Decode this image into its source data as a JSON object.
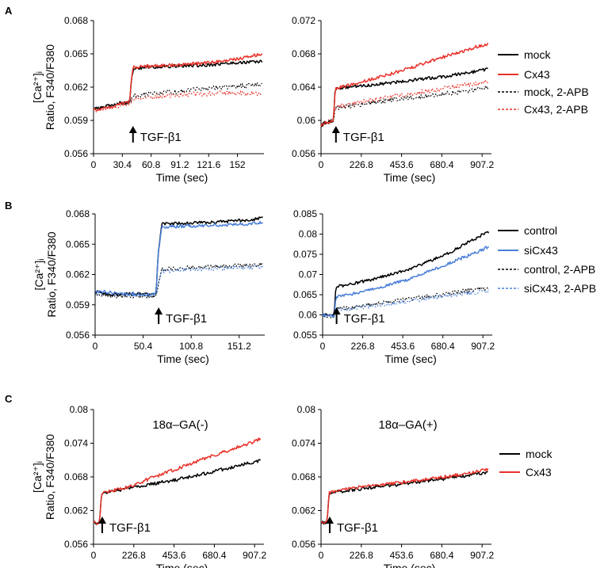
{
  "figure": {
    "panel_letters": [
      "A",
      "B",
      "C"
    ],
    "ylabel_line1": "[Ca²⁺]ᵢ",
    "ylabel_line2": "Ratio, F340/F380",
    "xlabel": "Time (sec)"
  },
  "colors": {
    "black": "#000000",
    "red": "#e8322a",
    "blue": "#4a7fd8",
    "pale_red": "#f0a09a",
    "pale_blue": "#9fbfe9",
    "gray": "#7a7a7a"
  },
  "legends": {
    "A": [
      "mock",
      "Cx43",
      "mock, 2-APB",
      "Cx43, 2-APB"
    ],
    "B": [
      "control",
      "siCx43",
      "control, 2-APB",
      "siCx43, 2-APB"
    ],
    "C": [
      "mock",
      "Cx43"
    ]
  },
  "chart_data": [
    {
      "id": "A-left",
      "type": "line",
      "xlabel": "Time (sec)",
      "ylabel": "[Ca2+]i Ratio, F340/F380",
      "xlim": [
        0,
        180
      ],
      "ylim": [
        0.056,
        0.068
      ],
      "xticks": [
        "0",
        "30.4",
        "60.8",
        "91.2",
        "121.6",
        "152"
      ],
      "yticks": [
        "0.056",
        "0.059",
        "0.062",
        "0.065",
        "0.068"
      ],
      "annotation": "TGF-β1",
      "stimulus_time": 40,
      "series": [
        {
          "name": "mock",
          "style": "solid",
          "color": "#000000",
          "x": [
            0,
            10,
            20,
            30,
            38,
            40,
            42,
            60,
            90,
            120,
            150,
            178
          ],
          "y": [
            0.06,
            0.0602,
            0.0604,
            0.0606,
            0.0606,
            0.0625,
            0.0637,
            0.0638,
            0.0639,
            0.064,
            0.0642,
            0.0643
          ]
        },
        {
          "name": "Cx43",
          "style": "solid",
          "color": "#e8322a",
          "x": [
            0,
            10,
            20,
            30,
            38,
            40,
            42,
            60,
            90,
            120,
            150,
            178
          ],
          "y": [
            0.0599,
            0.0601,
            0.0603,
            0.0605,
            0.0606,
            0.0626,
            0.0638,
            0.0639,
            0.064,
            0.0642,
            0.0645,
            0.065
          ]
        },
        {
          "name": "mock, 2-APB",
          "style": "dotted",
          "color": "#000000",
          "x": [
            0,
            10,
            20,
            30,
            38,
            42,
            60,
            90,
            120,
            150,
            178
          ],
          "y": [
            0.06,
            0.0602,
            0.0603,
            0.0605,
            0.0606,
            0.0612,
            0.0614,
            0.0616,
            0.0619,
            0.0621,
            0.0622
          ]
        },
        {
          "name": "Cx43, 2-APB",
          "style": "dotted",
          "color": "#e8322a",
          "x": [
            0,
            10,
            20,
            30,
            38,
            42,
            60,
            90,
            120,
            150,
            178
          ],
          "y": [
            0.0599,
            0.0601,
            0.0602,
            0.0604,
            0.0605,
            0.061,
            0.0611,
            0.0613,
            0.0614,
            0.0615,
            0.0614
          ]
        }
      ]
    },
    {
      "id": "A-right",
      "type": "line",
      "xlabel": "Time (sec)",
      "ylabel": "",
      "xlim": [
        0,
        960
      ],
      "ylim": [
        0.056,
        0.072
      ],
      "xticks": [
        "0",
        "226.8",
        "453.6",
        "680.4",
        "907.2"
      ],
      "yticks": [
        "0.056",
        "0.06",
        "0.064",
        "0.068",
        "0.072"
      ],
      "annotation": "TGF-β1",
      "stimulus_time": 75,
      "series": [
        {
          "name": "mock",
          "style": "solid",
          "color": "#000000",
          "x": [
            0,
            40,
            70,
            75,
            80,
            150,
            300,
            500,
            700,
            900,
            940
          ],
          "y": [
            0.0595,
            0.0598,
            0.06,
            0.062,
            0.0638,
            0.064,
            0.0643,
            0.0648,
            0.0653,
            0.066,
            0.0662
          ]
        },
        {
          "name": "Cx43",
          "style": "solid",
          "color": "#e8322a",
          "x": [
            0,
            40,
            70,
            75,
            80,
            150,
            300,
            500,
            700,
            900,
            940
          ],
          "y": [
            0.0595,
            0.0598,
            0.06,
            0.062,
            0.0638,
            0.0642,
            0.065,
            0.0663,
            0.0677,
            0.069,
            0.0692
          ]
        },
        {
          "name": "mock, 2-APB",
          "style": "dotted",
          "color": "#000000",
          "x": [
            0,
            40,
            70,
            80,
            150,
            300,
            500,
            700,
            900,
            940
          ],
          "y": [
            0.0595,
            0.0598,
            0.06,
            0.0615,
            0.0617,
            0.0622,
            0.0627,
            0.0632,
            0.0638,
            0.064
          ]
        },
        {
          "name": "Cx43, 2-APB",
          "style": "dotted",
          "color": "#e8322a",
          "x": [
            0,
            40,
            70,
            80,
            150,
            300,
            500,
            700,
            900,
            940
          ],
          "y": [
            0.0595,
            0.0598,
            0.06,
            0.0616,
            0.0619,
            0.0625,
            0.0632,
            0.0639,
            0.0645,
            0.0647
          ]
        }
      ]
    },
    {
      "id": "B-left",
      "type": "line",
      "xlabel": "Time (sec)",
      "ylabel": "[Ca2+]i Ratio, F340/F380",
      "xlim": [
        0,
        178
      ],
      "ylim": [
        0.056,
        0.068
      ],
      "xticks": [
        "0",
        "50.4",
        "100.8",
        "151.2"
      ],
      "yticks": [
        "0.056",
        "0.059",
        "0.062",
        "0.065",
        "0.068"
      ],
      "annotation": "TGF-β1",
      "stimulus_time": 65,
      "series": [
        {
          "name": "control",
          "style": "solid",
          "color": "#000000",
          "x": [
            0,
            20,
            40,
            60,
            64,
            66,
            70,
            100,
            130,
            160,
            176
          ],
          "y": [
            0.0603,
            0.06,
            0.0601,
            0.06,
            0.0601,
            0.064,
            0.067,
            0.0671,
            0.0672,
            0.0674,
            0.0676
          ]
        },
        {
          "name": "siCx43",
          "style": "solid",
          "color": "#4a7fd8",
          "x": [
            0,
            20,
            40,
            60,
            64,
            66,
            70,
            100,
            130,
            160,
            176
          ],
          "y": [
            0.0604,
            0.0602,
            0.06,
            0.06,
            0.0601,
            0.064,
            0.0667,
            0.0668,
            0.0669,
            0.067,
            0.0672
          ]
        },
        {
          "name": "control, 2-APB",
          "style": "dotted",
          "color": "#000000",
          "x": [
            0,
            20,
            40,
            60,
            64,
            70,
            100,
            130,
            160,
            176
          ],
          "y": [
            0.06,
            0.0598,
            0.0599,
            0.0598,
            0.06,
            0.0625,
            0.0627,
            0.0628,
            0.0629,
            0.063
          ]
        },
        {
          "name": "siCx43, 2-APB",
          "style": "dotted",
          "color": "#4a7fd8",
          "x": [
            0,
            20,
            40,
            60,
            64,
            70,
            100,
            130,
            160,
            176
          ],
          "y": [
            0.0602,
            0.06,
            0.0601,
            0.06,
            0.0601,
            0.0623,
            0.0625,
            0.0626,
            0.0627,
            0.0628
          ]
        }
      ]
    },
    {
      "id": "B-right",
      "type": "line",
      "xlabel": "Time (sec)",
      "ylabel": "",
      "xlim": [
        0,
        960
      ],
      "ylim": [
        0.055,
        0.085
      ],
      "xticks": [
        "0",
        "226.8",
        "453.6",
        "680.4",
        "907.2"
      ],
      "yticks": [
        "0.055",
        "0.06",
        "0.065",
        "0.07",
        "0.075",
        "0.08",
        "0.085"
      ],
      "annotation": "TGF-β1",
      "stimulus_time": 70,
      "series": [
        {
          "name": "control",
          "style": "solid",
          "color": "#000000",
          "x": [
            0,
            40,
            65,
            70,
            75,
            150,
            300,
            500,
            700,
            900,
            940
          ],
          "y": [
            0.06,
            0.0598,
            0.0597,
            0.063,
            0.067,
            0.0675,
            0.069,
            0.0715,
            0.075,
            0.0797,
            0.0805
          ]
        },
        {
          "name": "siCx43",
          "style": "solid",
          "color": "#4a7fd8",
          "x": [
            0,
            40,
            65,
            70,
            75,
            150,
            300,
            500,
            700,
            900,
            940
          ],
          "y": [
            0.06,
            0.0598,
            0.0597,
            0.062,
            0.0645,
            0.065,
            0.0665,
            0.069,
            0.0725,
            0.076,
            0.077
          ]
        },
        {
          "name": "control, 2-APB",
          "style": "dotted",
          "color": "#000000",
          "x": [
            0,
            40,
            65,
            75,
            150,
            300,
            500,
            700,
            900,
            940
          ],
          "y": [
            0.06,
            0.0598,
            0.0597,
            0.0615,
            0.0618,
            0.0627,
            0.064,
            0.0652,
            0.0665,
            0.0668
          ]
        },
        {
          "name": "siCx43, 2-APB",
          "style": "dotted",
          "color": "#4a7fd8",
          "x": [
            0,
            40,
            65,
            75,
            150,
            300,
            500,
            700,
            900,
            940
          ],
          "y": [
            0.06,
            0.0598,
            0.0597,
            0.0612,
            0.0615,
            0.0623,
            0.0635,
            0.0647,
            0.0658,
            0.066
          ]
        }
      ]
    },
    {
      "id": "C-left",
      "type": "line",
      "title": "18α–GA(-)",
      "xlabel": "Time (sec)",
      "ylabel": "[Ca2+]i Ratio, F340/F380",
      "xlim": [
        0,
        960
      ],
      "ylim": [
        0.056,
        0.08
      ],
      "xticks": [
        "0",
        "226.8",
        "453.6",
        "680.4",
        "907.2"
      ],
      "yticks": [
        "0.056",
        "0.062",
        "0.068",
        "0.074",
        "0.08"
      ],
      "annotation": "TGF-β1",
      "stimulus_time": 40,
      "series": [
        {
          "name": "mock",
          "style": "solid",
          "color": "#000000",
          "x": [
            0,
            20,
            35,
            40,
            45,
            100,
            200,
            300,
            450,
            600,
            750,
            900,
            940
          ],
          "y": [
            0.06,
            0.0598,
            0.06,
            0.063,
            0.065,
            0.0654,
            0.066,
            0.0666,
            0.0674,
            0.0684,
            0.0695,
            0.0706,
            0.071
          ]
        },
        {
          "name": "Cx43",
          "style": "solid",
          "color": "#e8322a",
          "x": [
            0,
            20,
            35,
            40,
            45,
            100,
            200,
            300,
            450,
            600,
            750,
            900,
            940
          ],
          "y": [
            0.06,
            0.0598,
            0.06,
            0.063,
            0.065,
            0.0655,
            0.0662,
            0.0675,
            0.0692,
            0.071,
            0.0726,
            0.0742,
            0.0748
          ]
        }
      ]
    },
    {
      "id": "C-right",
      "type": "line",
      "title": "18α–GA(+)",
      "xlabel": "Time (sec)",
      "ylabel": "",
      "xlim": [
        0,
        960
      ],
      "ylim": [
        0.056,
        0.08
      ],
      "xticks": [
        "0",
        "226.8",
        "453.6",
        "680.4",
        "907.2"
      ],
      "yticks": [
        "0.056",
        "0.062",
        "0.068",
        "0.074",
        "0.08"
      ],
      "annotation": "TGF-β1",
      "stimulus_time": 40,
      "series": [
        {
          "name": "mock",
          "style": "solid",
          "color": "#000000",
          "x": [
            0,
            20,
            35,
            40,
            45,
            100,
            200,
            400,
            600,
            800,
            940
          ],
          "y": [
            0.06,
            0.0598,
            0.06,
            0.063,
            0.065,
            0.0654,
            0.0658,
            0.0665,
            0.0673,
            0.0681,
            0.0688
          ]
        },
        {
          "name": "Cx43",
          "style": "solid",
          "color": "#e8322a",
          "x": [
            0,
            20,
            35,
            40,
            45,
            100,
            200,
            400,
            600,
            800,
            940
          ],
          "y": [
            0.06,
            0.0598,
            0.06,
            0.063,
            0.0652,
            0.0657,
            0.0661,
            0.0668,
            0.0676,
            0.0685,
            0.0693
          ]
        }
      ]
    }
  ]
}
